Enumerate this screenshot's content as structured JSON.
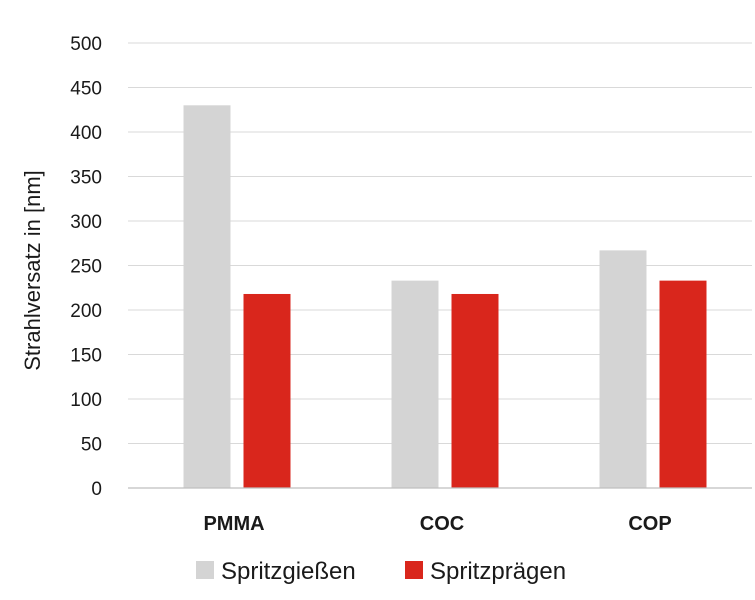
{
  "chart_data": {
    "type": "bar",
    "categories": [
      "PMMA",
      "COC",
      "COP"
    ],
    "series": [
      {
        "name": "Spritzgießen",
        "values": [
          430,
          233,
          267
        ],
        "color": "#d4d4d4"
      },
      {
        "name": "Spritzprägen",
        "values": [
          218,
          218,
          233
        ],
        "color": "#d9261c"
      }
    ],
    "ylabel": "Strahlversatz in [nm]",
    "xlabel": "",
    "ylim": [
      0,
      500
    ],
    "yticks": [
      0,
      50,
      100,
      150,
      200,
      250,
      300,
      350,
      400,
      450,
      500
    ],
    "grid": true,
    "legend": "bottom"
  }
}
